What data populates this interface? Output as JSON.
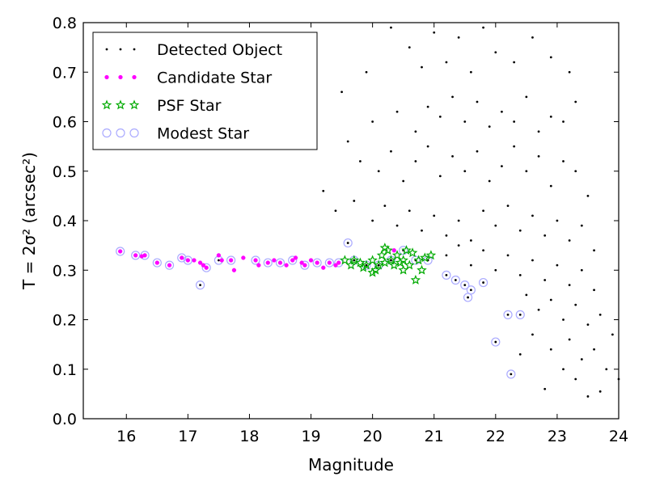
{
  "chart_data": {
    "type": "scatter",
    "xlabel": "Magnitude",
    "ylabel": "T = 2σ² (arcsec²)",
    "xlim": [
      15.3,
      24
    ],
    "ylim": [
      0,
      0.8
    ],
    "xticks": [
      "16",
      "17",
      "18",
      "19",
      "20",
      "21",
      "22",
      "23",
      "24"
    ],
    "yticks": [
      "0.0",
      "0.1",
      "0.2",
      "0.3",
      "0.4",
      "0.5",
      "0.6",
      "0.7",
      "0.8"
    ],
    "legend_position": "top-left",
    "grid": false,
    "series": [
      {
        "name": "Detected Object",
        "marker": "dot",
        "color": "#000000",
        "points": [
          [
            15.9,
            0.338
          ],
          [
            16.15,
            0.33
          ],
          [
            16.3,
            0.33
          ],
          [
            16.5,
            0.315
          ],
          [
            16.7,
            0.31
          ],
          [
            16.9,
            0.325
          ],
          [
            17.0,
            0.32
          ],
          [
            17.1,
            0.32
          ],
          [
            17.2,
            0.27
          ],
          [
            17.3,
            0.305
          ],
          [
            17.5,
            0.32
          ],
          [
            17.7,
            0.32
          ],
          [
            18.1,
            0.32
          ],
          [
            18.3,
            0.315
          ],
          [
            18.5,
            0.315
          ],
          [
            18.7,
            0.32
          ],
          [
            18.9,
            0.31
          ],
          [
            19.1,
            0.315
          ],
          [
            19.3,
            0.315
          ],
          [
            19.45,
            0.315
          ],
          [
            19.6,
            0.355
          ],
          [
            19.7,
            0.32
          ],
          [
            19.9,
            0.31
          ],
          [
            20.1,
            0.31
          ],
          [
            20.3,
            0.32
          ],
          [
            20.5,
            0.34
          ],
          [
            20.7,
            0.32
          ],
          [
            20.9,
            0.32
          ],
          [
            21.2,
            0.29
          ],
          [
            21.35,
            0.28
          ],
          [
            21.5,
            0.27
          ],
          [
            21.55,
            0.245
          ],
          [
            21.6,
            0.26
          ],
          [
            21.8,
            0.275
          ],
          [
            22.0,
            0.155
          ],
          [
            22.2,
            0.21
          ],
          [
            22.25,
            0.09
          ],
          [
            22.4,
            0.21
          ],
          [
            20.3,
            0.79
          ],
          [
            20.6,
            0.75
          ],
          [
            20.8,
            0.71
          ],
          [
            21.0,
            0.78
          ],
          [
            21.2,
            0.72
          ],
          [
            21.4,
            0.77
          ],
          [
            21.6,
            0.7
          ],
          [
            21.8,
            0.79
          ],
          [
            22.0,
            0.74
          ],
          [
            22.3,
            0.72
          ],
          [
            22.6,
            0.77
          ],
          [
            22.9,
            0.73
          ],
          [
            23.2,
            0.7
          ],
          [
            19.9,
            0.7
          ],
          [
            19.5,
            0.66
          ],
          [
            18.9,
            0.69
          ],
          [
            20.0,
            0.6
          ],
          [
            20.4,
            0.62
          ],
          [
            20.7,
            0.58
          ],
          [
            20.9,
            0.63
          ],
          [
            21.1,
            0.61
          ],
          [
            21.3,
            0.65
          ],
          [
            21.5,
            0.6
          ],
          [
            21.7,
            0.64
          ],
          [
            21.9,
            0.59
          ],
          [
            22.1,
            0.62
          ],
          [
            22.3,
            0.6
          ],
          [
            22.5,
            0.65
          ],
          [
            22.7,
            0.58
          ],
          [
            22.9,
            0.61
          ],
          [
            23.1,
            0.6
          ],
          [
            23.3,
            0.64
          ],
          [
            19.6,
            0.56
          ],
          [
            19.8,
            0.52
          ],
          [
            20.1,
            0.5
          ],
          [
            20.3,
            0.54
          ],
          [
            20.5,
            0.48
          ],
          [
            20.7,
            0.52
          ],
          [
            20.9,
            0.55
          ],
          [
            21.1,
            0.49
          ],
          [
            21.3,
            0.53
          ],
          [
            21.5,
            0.5
          ],
          [
            21.7,
            0.54
          ],
          [
            21.9,
            0.48
          ],
          [
            22.1,
            0.51
          ],
          [
            22.3,
            0.55
          ],
          [
            22.5,
            0.5
          ],
          [
            22.7,
            0.53
          ],
          [
            22.9,
            0.47
          ],
          [
            23.1,
            0.52
          ],
          [
            23.3,
            0.5
          ],
          [
            23.5,
            0.45
          ],
          [
            19.2,
            0.46
          ],
          [
            19.4,
            0.42
          ],
          [
            19.7,
            0.44
          ],
          [
            20.0,
            0.4
          ],
          [
            20.2,
            0.43
          ],
          [
            20.4,
            0.39
          ],
          [
            20.6,
            0.42
          ],
          [
            20.8,
            0.38
          ],
          [
            21.0,
            0.41
          ],
          [
            21.2,
            0.37
          ],
          [
            21.4,
            0.4
          ],
          [
            21.6,
            0.36
          ],
          [
            21.8,
            0.42
          ],
          [
            22.0,
            0.39
          ],
          [
            22.2,
            0.43
          ],
          [
            22.4,
            0.38
          ],
          [
            22.6,
            0.41
          ],
          [
            22.8,
            0.37
          ],
          [
            23.0,
            0.4
          ],
          [
            23.2,
            0.36
          ],
          [
            23.4,
            0.39
          ],
          [
            23.6,
            0.34
          ],
          [
            21.2,
            0.33
          ],
          [
            21.4,
            0.35
          ],
          [
            21.6,
            0.31
          ],
          [
            21.8,
            0.34
          ],
          [
            22.0,
            0.3
          ],
          [
            22.2,
            0.33
          ],
          [
            22.4,
            0.29
          ],
          [
            22.6,
            0.32
          ],
          [
            22.8,
            0.28
          ],
          [
            23.0,
            0.31
          ],
          [
            23.2,
            0.27
          ],
          [
            23.4,
            0.3
          ],
          [
            23.6,
            0.26
          ],
          [
            22.5,
            0.25
          ],
          [
            22.7,
            0.22
          ],
          [
            22.9,
            0.24
          ],
          [
            23.1,
            0.2
          ],
          [
            23.3,
            0.23
          ],
          [
            23.5,
            0.19
          ],
          [
            23.7,
            0.21
          ],
          [
            23.9,
            0.17
          ],
          [
            22.6,
            0.17
          ],
          [
            22.9,
            0.14
          ],
          [
            23.2,
            0.16
          ],
          [
            23.4,
            0.12
          ],
          [
            23.6,
            0.14
          ],
          [
            23.8,
            0.1
          ],
          [
            24.0,
            0.08
          ],
          [
            22.8,
            0.06
          ],
          [
            23.3,
            0.08
          ],
          [
            23.5,
            0.045
          ],
          [
            23.7,
            0.055
          ],
          [
            23.1,
            0.1
          ],
          [
            22.4,
            0.13
          ]
        ]
      },
      {
        "name": "Candidate Star",
        "marker": "circle",
        "color": "#ff00ff",
        "points": [
          [
            15.9,
            0.338
          ],
          [
            16.15,
            0.33
          ],
          [
            16.25,
            0.328
          ],
          [
            16.3,
            0.33
          ],
          [
            16.5,
            0.315
          ],
          [
            16.7,
            0.31
          ],
          [
            16.9,
            0.325
          ],
          [
            17.0,
            0.32
          ],
          [
            17.1,
            0.32
          ],
          [
            17.2,
            0.315
          ],
          [
            17.25,
            0.31
          ],
          [
            17.3,
            0.305
          ],
          [
            17.5,
            0.33
          ],
          [
            17.55,
            0.32
          ],
          [
            17.7,
            0.32
          ],
          [
            17.75,
            0.3
          ],
          [
            17.9,
            0.325
          ],
          [
            18.1,
            0.32
          ],
          [
            18.15,
            0.31
          ],
          [
            18.3,
            0.315
          ],
          [
            18.4,
            0.32
          ],
          [
            18.5,
            0.315
          ],
          [
            18.6,
            0.31
          ],
          [
            18.7,
            0.32
          ],
          [
            18.75,
            0.325
          ],
          [
            18.85,
            0.315
          ],
          [
            18.9,
            0.31
          ],
          [
            19.0,
            0.32
          ],
          [
            19.1,
            0.315
          ],
          [
            19.2,
            0.305
          ],
          [
            19.3,
            0.315
          ],
          [
            19.4,
            0.31
          ],
          [
            19.45,
            0.315
          ],
          [
            20.35,
            0.34
          ]
        ]
      },
      {
        "name": "PSF Star",
        "marker": "star",
        "color": "#00aa00",
        "points": [
          [
            19.55,
            0.32
          ],
          [
            19.65,
            0.31
          ],
          [
            19.7,
            0.32
          ],
          [
            19.8,
            0.315
          ],
          [
            19.85,
            0.305
          ],
          [
            19.9,
            0.31
          ],
          [
            20.0,
            0.32
          ],
          [
            20.05,
            0.3
          ],
          [
            20.1,
            0.31
          ],
          [
            20.15,
            0.33
          ],
          [
            20.2,
            0.315
          ],
          [
            20.25,
            0.34
          ],
          [
            20.3,
            0.32
          ],
          [
            20.35,
            0.31
          ],
          [
            20.4,
            0.33
          ],
          [
            20.45,
            0.315
          ],
          [
            20.5,
            0.32
          ],
          [
            20.55,
            0.34
          ],
          [
            20.6,
            0.31
          ],
          [
            20.65,
            0.335
          ],
          [
            20.7,
            0.28
          ],
          [
            20.75,
            0.32
          ],
          [
            20.8,
            0.3
          ],
          [
            20.85,
            0.325
          ],
          [
            20.95,
            0.33
          ],
          [
            20.0,
            0.295
          ],
          [
            20.2,
            0.345
          ],
          [
            20.5,
            0.3
          ]
        ]
      },
      {
        "name": "Modest Star",
        "marker": "open-circle",
        "color": "#aaaaff",
        "points": [
          [
            15.9,
            0.338
          ],
          [
            16.15,
            0.33
          ],
          [
            16.3,
            0.33
          ],
          [
            16.5,
            0.315
          ],
          [
            16.7,
            0.31
          ],
          [
            16.9,
            0.325
          ],
          [
            17.0,
            0.32
          ],
          [
            17.2,
            0.27
          ],
          [
            17.3,
            0.305
          ],
          [
            17.5,
            0.32
          ],
          [
            17.7,
            0.32
          ],
          [
            18.1,
            0.32
          ],
          [
            18.3,
            0.315
          ],
          [
            18.5,
            0.315
          ],
          [
            18.7,
            0.32
          ],
          [
            18.9,
            0.31
          ],
          [
            19.1,
            0.315
          ],
          [
            19.3,
            0.315
          ],
          [
            19.45,
            0.315
          ],
          [
            19.6,
            0.355
          ],
          [
            19.7,
            0.32
          ],
          [
            19.9,
            0.31
          ],
          [
            20.1,
            0.31
          ],
          [
            20.3,
            0.32
          ],
          [
            20.5,
            0.34
          ],
          [
            20.7,
            0.32
          ],
          [
            20.9,
            0.32
          ],
          [
            21.2,
            0.29
          ],
          [
            21.35,
            0.28
          ],
          [
            21.5,
            0.27
          ],
          [
            21.55,
            0.245
          ],
          [
            21.6,
            0.26
          ],
          [
            21.8,
            0.275
          ],
          [
            22.0,
            0.155
          ],
          [
            22.2,
            0.21
          ],
          [
            22.25,
            0.09
          ],
          [
            22.4,
            0.21
          ]
        ]
      }
    ]
  }
}
